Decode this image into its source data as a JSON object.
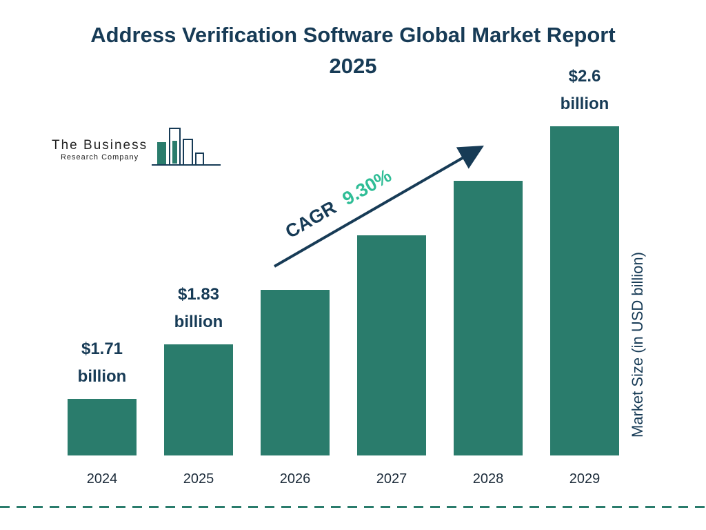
{
  "header": {
    "title": "Address Verification Software Global Market Report 2025"
  },
  "logo": {
    "line1": "The Business",
    "line2": "Research Company"
  },
  "annotation": {
    "cagr_label": "CAGR",
    "cagr_value": "9.30%"
  },
  "chart_data": {
    "type": "bar",
    "title": "Address Verification Software Global Market Report 2025",
    "categories": [
      "2024",
      "2025",
      "2026",
      "2027",
      "2028",
      "2029"
    ],
    "values": [
      1.71,
      1.83,
      2.0,
      2.19,
      2.39,
      2.6
    ],
    "value_labels": [
      [
        "$1.71",
        "billion"
      ],
      [
        "$1.83",
        "billion"
      ],
      null,
      null,
      null,
      [
        "$2.6",
        "billion"
      ]
    ],
    "cagr": "9.30%",
    "xlabel": "",
    "ylabel": "Market Size (in USD billion)",
    "legend": false,
    "grid": false,
    "colors": {
      "bar": "#2a7c6c",
      "title": "#173b56",
      "cagr_value": "#2fbd96",
      "arrow": "#173b56",
      "axis_text": "#1c2b3a",
      "dashed_line": "#2a7c6c"
    }
  }
}
